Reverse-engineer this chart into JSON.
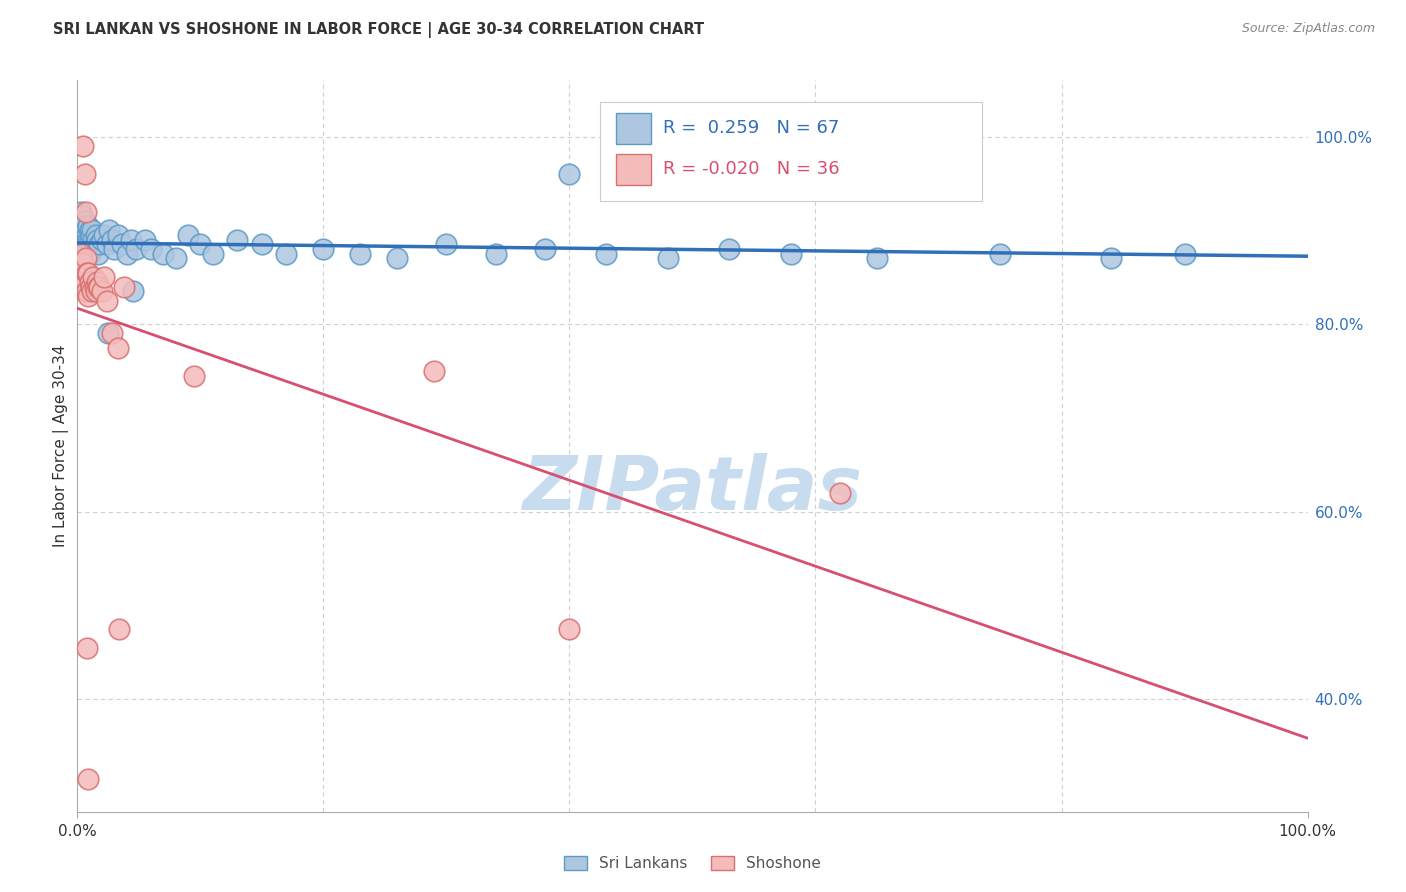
{
  "title": "SRI LANKAN VS SHOSHONE IN LABOR FORCE | AGE 30-34 CORRELATION CHART",
  "source": "Source: ZipAtlas.com",
  "ylabel": "In Labor Force | Age 30-34",
  "xlim": [
    0.0,
    1.0
  ],
  "ylim": [
    0.28,
    1.06
  ],
  "right_yticks": [
    1.0,
    0.8,
    0.6,
    0.4
  ],
  "right_yticklabels": [
    "100.0%",
    "80.0%",
    "60.0%",
    "40.0%"
  ],
  "legend_blue_r": "0.259",
  "legend_blue_n": "67",
  "legend_pink_r": "-0.020",
  "legend_pink_n": "36",
  "legend_blue_label": "Sri Lankans",
  "legend_pink_label": "Shoshone",
  "blue_face": "#AEC6E0",
  "blue_edge": "#5B9BC8",
  "pink_face": "#F4BBBB",
  "pink_edge": "#D97070",
  "line_blue": "#3070B8",
  "line_pink": "#D85070",
  "grid_color": "#d0d0d0",
  "text_color": "#333333",
  "right_tick_color": "#3070B8",
  "watermark": "ZIPatlas",
  "blue_x": [
    0.003,
    0.004,
    0.004,
    0.005,
    0.005,
    0.005,
    0.006,
    0.006,
    0.006,
    0.007,
    0.007,
    0.007,
    0.008,
    0.008,
    0.009,
    0.009,
    0.01,
    0.01,
    0.01,
    0.011,
    0.011,
    0.012,
    0.012,
    0.013,
    0.014,
    0.015,
    0.016,
    0.017,
    0.018,
    0.02,
    0.022,
    0.024,
    0.026,
    0.028,
    0.03,
    0.033,
    0.036,
    0.04,
    0.044,
    0.048,
    0.055,
    0.06,
    0.07,
    0.08,
    0.09,
    0.1,
    0.11,
    0.13,
    0.15,
    0.17,
    0.2,
    0.23,
    0.26,
    0.3,
    0.34,
    0.38,
    0.43,
    0.48,
    0.53,
    0.58,
    0.65,
    0.75,
    0.84,
    0.9,
    0.025,
    0.045,
    0.4
  ],
  "blue_y": [
    0.92,
    0.915,
    0.88,
    0.905,
    0.89,
    0.875,
    0.91,
    0.895,
    0.885,
    0.9,
    0.89,
    0.875,
    0.895,
    0.88,
    0.905,
    0.89,
    0.9,
    0.89,
    0.875,
    0.895,
    0.88,
    0.9,
    0.88,
    0.89,
    0.885,
    0.895,
    0.89,
    0.875,
    0.885,
    0.89,
    0.895,
    0.885,
    0.9,
    0.89,
    0.88,
    0.895,
    0.885,
    0.875,
    0.89,
    0.88,
    0.89,
    0.88,
    0.875,
    0.87,
    0.895,
    0.885,
    0.875,
    0.89,
    0.885,
    0.875,
    0.88,
    0.875,
    0.87,
    0.885,
    0.875,
    0.88,
    0.875,
    0.87,
    0.88,
    0.875,
    0.87,
    0.875,
    0.87,
    0.875,
    0.79,
    0.835,
    0.96
  ],
  "pink_x": [
    0.003,
    0.004,
    0.005,
    0.006,
    0.006,
    0.007,
    0.007,
    0.008,
    0.008,
    0.009,
    0.009,
    0.01,
    0.011,
    0.012,
    0.013,
    0.014,
    0.015,
    0.016,
    0.017,
    0.018,
    0.02,
    0.022,
    0.024,
    0.028,
    0.033,
    0.038,
    0.29,
    0.4,
    0.095,
    0.62,
    0.005,
    0.006,
    0.007,
    0.034,
    0.008,
    0.009
  ],
  "pink_y": [
    0.875,
    0.86,
    0.865,
    0.85,
    0.835,
    0.87,
    0.845,
    0.855,
    0.835,
    0.855,
    0.83,
    0.845,
    0.84,
    0.835,
    0.85,
    0.84,
    0.835,
    0.845,
    0.84,
    0.84,
    0.835,
    0.85,
    0.825,
    0.79,
    0.775,
    0.84,
    0.75,
    0.475,
    0.745,
    0.62,
    0.99,
    0.96,
    0.92,
    0.475,
    0.455,
    0.315
  ]
}
